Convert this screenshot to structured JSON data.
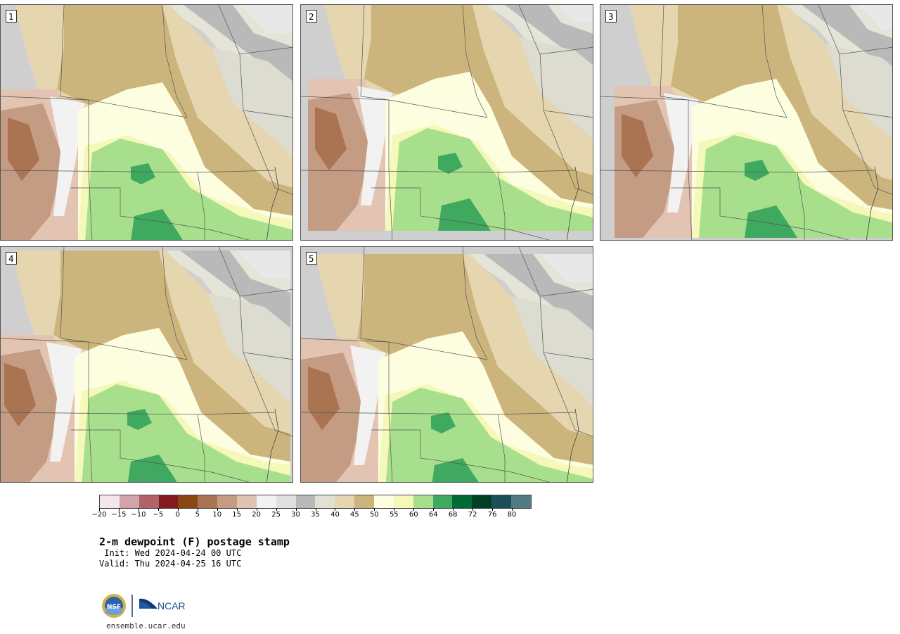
{
  "panels": [
    {
      "label": "1"
    },
    {
      "label": "2"
    },
    {
      "label": "3"
    },
    {
      "label": "4"
    },
    {
      "label": "5"
    }
  ],
  "colorbar": {
    "colors": [
      "#f4e6ea",
      "#d3a3aa",
      "#b06368",
      "#861820",
      "#8a4511",
      "#aa7351",
      "#c49c83",
      "#e0c3b1",
      "#f2f2f2",
      "#e0e0e0",
      "#b8b8b8",
      "#e0e0d4",
      "#e6d6b0",
      "#ccb57c",
      "#fdfde0",
      "#f4f8b8",
      "#a8df8c",
      "#3fa95f",
      "#006a35",
      "#003f25",
      "#1c4f58",
      "#537b82"
    ],
    "tick_labels": [
      "−20",
      "−15",
      "−10",
      "−5",
      "0",
      "5",
      "10",
      "15",
      "20",
      "25",
      "30",
      "35",
      "40",
      "45",
      "50",
      "55",
      "60",
      "64",
      "68",
      "72",
      "76",
      "80"
    ]
  },
  "title": "2-m dewpoint (F) postage stamp",
  "init": " Init: Wed 2024-04-24 00 UTC",
  "valid": "Valid: Thu 2024-04-25 16 UTC",
  "logos": {
    "nsf": "NSF",
    "ncar": "NCAR"
  },
  "footer_url": "ensemble.ucar.edu"
}
